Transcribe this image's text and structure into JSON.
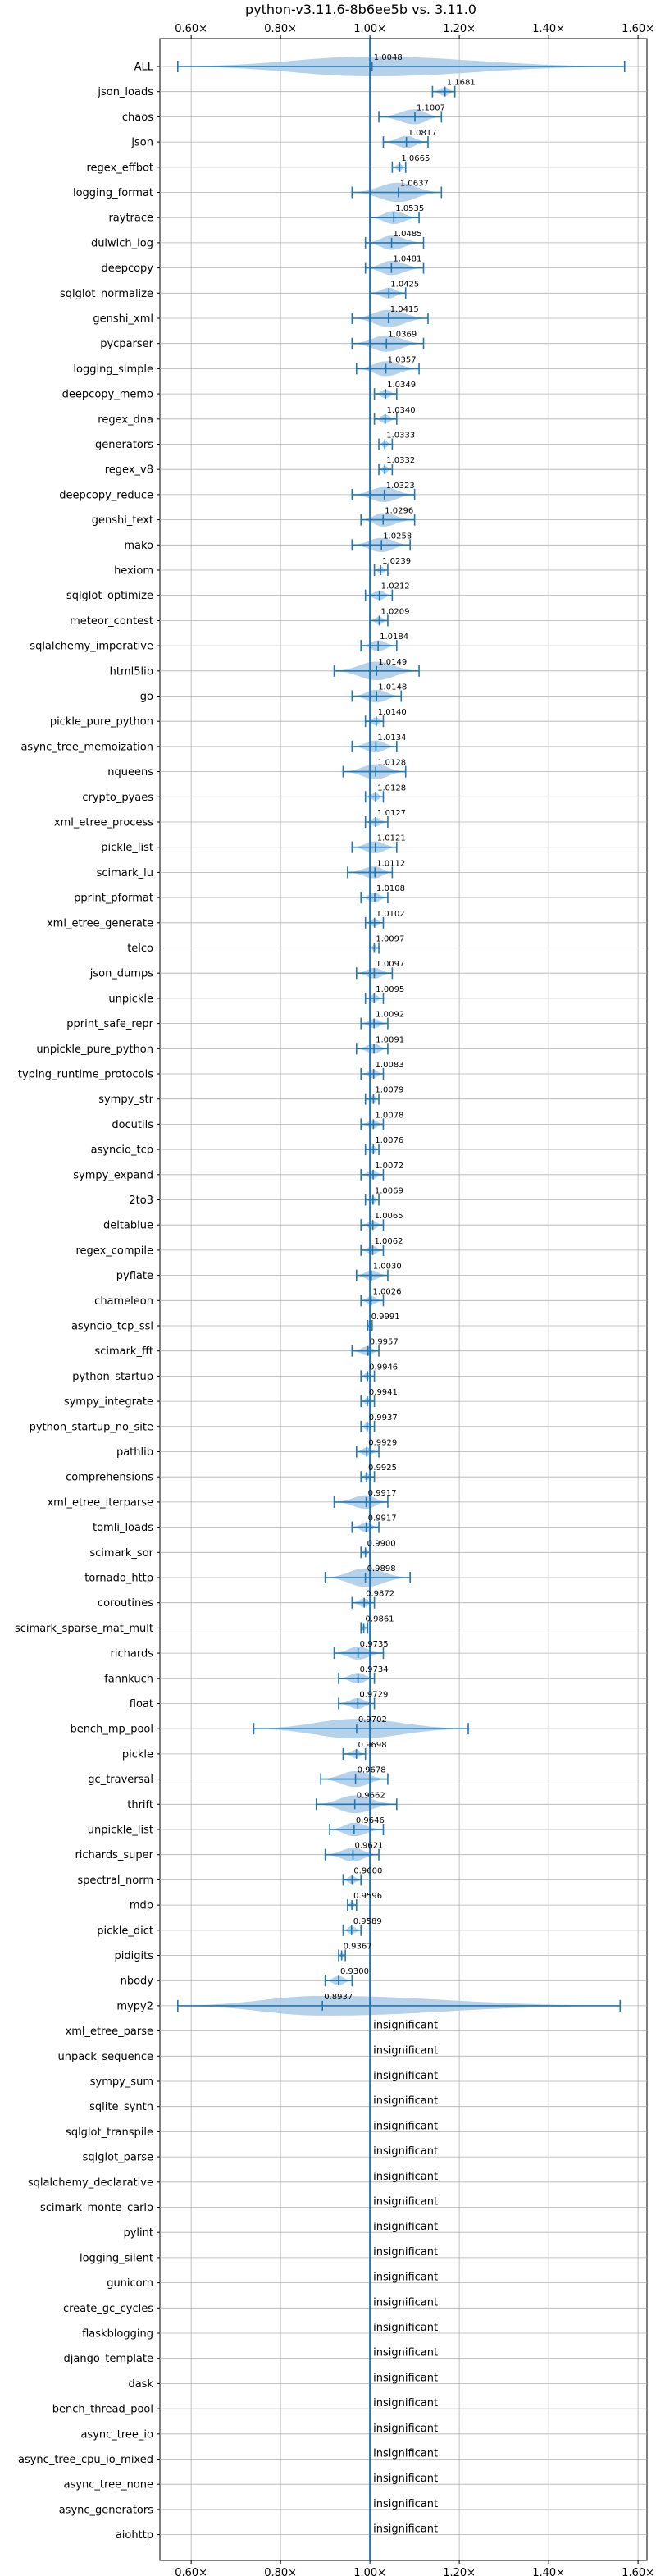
{
  "chart_data": {
    "type": "violin",
    "title": "python-v3.11.6-8b6ee5b vs. 3.11.0",
    "xlim": [
      0.53,
      1.62
    ],
    "xticks": [
      0.6,
      0.8,
      1.0,
      1.2,
      1.4,
      1.6
    ],
    "xtick_labels": [
      "0.60×",
      "0.80×",
      "1.00×",
      "1.20×",
      "1.40×",
      "1.60×"
    ],
    "reference_line": 1.0,
    "grid": true,
    "colors": {
      "violin": "#a9c9e6",
      "whisker": "#1f77b4",
      "reference": "#1f77b4",
      "grid": "#b0b0b0"
    },
    "insignificant_label": "insignificant",
    "benchmarks": [
      {
        "name": "ALL",
        "median": 1.0048,
        "label": "1.0048",
        "lo": 0.57,
        "hi": 1.57
      },
      {
        "name": "json_loads",
        "median": 1.1681,
        "label": "1.1681",
        "lo": 1.14,
        "hi": 1.19
      },
      {
        "name": "chaos",
        "median": 1.1007,
        "label": "1.1007",
        "lo": 1.02,
        "hi": 1.16
      },
      {
        "name": "json",
        "median": 1.0817,
        "label": "1.0817",
        "lo": 1.03,
        "hi": 1.13
      },
      {
        "name": "regex_effbot",
        "median": 1.0665,
        "label": "1.0665",
        "lo": 1.05,
        "hi": 1.08
      },
      {
        "name": "logging_format",
        "median": 1.0637,
        "label": "1.0637",
        "lo": 0.96,
        "hi": 1.16
      },
      {
        "name": "raytrace",
        "median": 1.0535,
        "label": "1.0535",
        "lo": 1.0,
        "hi": 1.11
      },
      {
        "name": "dulwich_log",
        "median": 1.0485,
        "label": "1.0485",
        "lo": 0.99,
        "hi": 1.12
      },
      {
        "name": "deepcopy",
        "median": 1.0481,
        "label": "1.0481",
        "lo": 0.99,
        "hi": 1.12
      },
      {
        "name": "sqlglot_normalize",
        "median": 1.0425,
        "label": "1.0425",
        "lo": 1.0,
        "hi": 1.08
      },
      {
        "name": "genshi_xml",
        "median": 1.0415,
        "label": "1.0415",
        "lo": 0.96,
        "hi": 1.13
      },
      {
        "name": "pycparser",
        "median": 1.0369,
        "label": "1.0369",
        "lo": 0.96,
        "hi": 1.12
      },
      {
        "name": "logging_simple",
        "median": 1.0357,
        "label": "1.0357",
        "lo": 0.97,
        "hi": 1.11
      },
      {
        "name": "deepcopy_memo",
        "median": 1.0349,
        "label": "1.0349",
        "lo": 1.01,
        "hi": 1.06
      },
      {
        "name": "regex_dna",
        "median": 1.034,
        "label": "1.0340",
        "lo": 1.01,
        "hi": 1.06
      },
      {
        "name": "generators",
        "median": 1.0333,
        "label": "1.0333",
        "lo": 1.02,
        "hi": 1.05
      },
      {
        "name": "regex_v8",
        "median": 1.0332,
        "label": "1.0332",
        "lo": 1.02,
        "hi": 1.05
      },
      {
        "name": "deepcopy_reduce",
        "median": 1.0323,
        "label": "1.0323",
        "lo": 0.96,
        "hi": 1.1
      },
      {
        "name": "genshi_text",
        "median": 1.0296,
        "label": "1.0296",
        "lo": 0.98,
        "hi": 1.1
      },
      {
        "name": "mako",
        "median": 1.0258,
        "label": "1.0258",
        "lo": 0.96,
        "hi": 1.09
      },
      {
        "name": "hexiom",
        "median": 1.0239,
        "label": "1.0239",
        "lo": 1.01,
        "hi": 1.04
      },
      {
        "name": "sqlglot_optimize",
        "median": 1.0212,
        "label": "1.0212",
        "lo": 0.99,
        "hi": 1.05
      },
      {
        "name": "meteor_contest",
        "median": 1.0209,
        "label": "1.0209",
        "lo": 1.0,
        "hi": 1.04
      },
      {
        "name": "sqlalchemy_imperative",
        "median": 1.0184,
        "label": "1.0184",
        "lo": 0.98,
        "hi": 1.06
      },
      {
        "name": "html5lib",
        "median": 1.0149,
        "label": "1.0149",
        "lo": 0.92,
        "hi": 1.11
      },
      {
        "name": "go",
        "median": 1.0148,
        "label": "1.0148",
        "lo": 0.96,
        "hi": 1.07
      },
      {
        "name": "pickle_pure_python",
        "median": 1.014,
        "label": "1.0140",
        "lo": 0.99,
        "hi": 1.03
      },
      {
        "name": "async_tree_memoization",
        "median": 1.0134,
        "label": "1.0134",
        "lo": 0.96,
        "hi": 1.06
      },
      {
        "name": "nqueens",
        "median": 1.0128,
        "label": "1.0128",
        "lo": 0.94,
        "hi": 1.08
      },
      {
        "name": "crypto_pyaes",
        "median": 1.0128,
        "label": "1.0128",
        "lo": 0.99,
        "hi": 1.03
      },
      {
        "name": "xml_etree_process",
        "median": 1.0127,
        "label": "1.0127",
        "lo": 0.99,
        "hi": 1.04
      },
      {
        "name": "pickle_list",
        "median": 1.0121,
        "label": "1.0121",
        "lo": 0.96,
        "hi": 1.06
      },
      {
        "name": "scimark_lu",
        "median": 1.0112,
        "label": "1.0112",
        "lo": 0.95,
        "hi": 1.05
      },
      {
        "name": "pprint_pformat",
        "median": 1.0108,
        "label": "1.0108",
        "lo": 0.98,
        "hi": 1.04
      },
      {
        "name": "xml_etree_generate",
        "median": 1.0102,
        "label": "1.0102",
        "lo": 0.99,
        "hi": 1.03
      },
      {
        "name": "telco",
        "median": 1.0097,
        "label": "1.0097",
        "lo": 1.0,
        "hi": 1.02
      },
      {
        "name": "json_dumps",
        "median": 1.0097,
        "label": "1.0097",
        "lo": 0.97,
        "hi": 1.05
      },
      {
        "name": "unpickle",
        "median": 1.0095,
        "label": "1.0095",
        "lo": 0.99,
        "hi": 1.03
      },
      {
        "name": "pprint_safe_repr",
        "median": 1.0092,
        "label": "1.0092",
        "lo": 0.98,
        "hi": 1.04
      },
      {
        "name": "unpickle_pure_python",
        "median": 1.0091,
        "label": "1.0091",
        "lo": 0.97,
        "hi": 1.04
      },
      {
        "name": "typing_runtime_protocols",
        "median": 1.0083,
        "label": "1.0083",
        "lo": 0.98,
        "hi": 1.03
      },
      {
        "name": "sympy_str",
        "median": 1.0079,
        "label": "1.0079",
        "lo": 0.99,
        "hi": 1.02
      },
      {
        "name": "docutils",
        "median": 1.0078,
        "label": "1.0078",
        "lo": 0.98,
        "hi": 1.03
      },
      {
        "name": "asyncio_tcp",
        "median": 1.0076,
        "label": "1.0076",
        "lo": 0.99,
        "hi": 1.02
      },
      {
        "name": "sympy_expand",
        "median": 1.0072,
        "label": "1.0072",
        "lo": 0.98,
        "hi": 1.03
      },
      {
        "name": "2to3",
        "median": 1.0069,
        "label": "1.0069",
        "lo": 0.99,
        "hi": 1.02
      },
      {
        "name": "deltablue",
        "median": 1.0065,
        "label": "1.0065",
        "lo": 0.98,
        "hi": 1.03
      },
      {
        "name": "regex_compile",
        "median": 1.0062,
        "label": "1.0062",
        "lo": 0.98,
        "hi": 1.03
      },
      {
        "name": "pyflate",
        "median": 1.003,
        "label": "1.0030",
        "lo": 0.97,
        "hi": 1.04
      },
      {
        "name": "chameleon",
        "median": 1.0026,
        "label": "1.0026",
        "lo": 0.98,
        "hi": 1.03
      },
      {
        "name": "asyncio_tcp_ssl",
        "median": 0.9991,
        "label": "0.9991",
        "lo": 0.995,
        "hi": 1.005
      },
      {
        "name": "scimark_fft",
        "median": 0.9957,
        "label": "0.9957",
        "lo": 0.96,
        "hi": 1.02
      },
      {
        "name": "python_startup",
        "median": 0.9946,
        "label": "0.9946",
        "lo": 0.98,
        "hi": 1.01
      },
      {
        "name": "sympy_integrate",
        "median": 0.9941,
        "label": "0.9941",
        "lo": 0.98,
        "hi": 1.01
      },
      {
        "name": "python_startup_no_site",
        "median": 0.9937,
        "label": "0.9937",
        "lo": 0.98,
        "hi": 1.01
      },
      {
        "name": "pathlib",
        "median": 0.9929,
        "label": "0.9929",
        "lo": 0.97,
        "hi": 1.02
      },
      {
        "name": "comprehensions",
        "median": 0.9925,
        "label": "0.9925",
        "lo": 0.98,
        "hi": 1.01
      },
      {
        "name": "xml_etree_iterparse",
        "median": 0.9917,
        "label": "0.9917",
        "lo": 0.92,
        "hi": 1.04
      },
      {
        "name": "tomli_loads",
        "median": 0.9917,
        "label": "0.9917",
        "lo": 0.96,
        "hi": 1.02
      },
      {
        "name": "scimark_sor",
        "median": 0.99,
        "label": "0.9900",
        "lo": 0.98,
        "hi": 1.0
      },
      {
        "name": "tornado_http",
        "median": 0.9898,
        "label": "0.9898",
        "lo": 0.9,
        "hi": 1.09
      },
      {
        "name": "coroutines",
        "median": 0.9872,
        "label": "0.9872",
        "lo": 0.96,
        "hi": 1.01
      },
      {
        "name": "scimark_sparse_mat_mult",
        "median": 0.9861,
        "label": "0.9861",
        "lo": 0.98,
        "hi": 0.995
      },
      {
        "name": "richards",
        "median": 0.9735,
        "label": "0.9735",
        "lo": 0.92,
        "hi": 1.03
      },
      {
        "name": "fannkuch",
        "median": 0.9734,
        "label": "0.9734",
        "lo": 0.93,
        "hi": 1.01
      },
      {
        "name": "float",
        "median": 0.9729,
        "label": "0.9729",
        "lo": 0.93,
        "hi": 1.01
      },
      {
        "name": "bench_mp_pool",
        "median": 0.9702,
        "label": "0.9702",
        "lo": 0.74,
        "hi": 1.22
      },
      {
        "name": "pickle",
        "median": 0.9698,
        "label": "0.9698",
        "lo": 0.94,
        "hi": 0.99
      },
      {
        "name": "gc_traversal",
        "median": 0.9678,
        "label": "0.9678",
        "lo": 0.89,
        "hi": 1.04
      },
      {
        "name": "thrift",
        "median": 0.9662,
        "label": "0.9662",
        "lo": 0.88,
        "hi": 1.06
      },
      {
        "name": "unpickle_list",
        "median": 0.9646,
        "label": "0.9646",
        "lo": 0.91,
        "hi": 1.03
      },
      {
        "name": "richards_super",
        "median": 0.9621,
        "label": "0.9621",
        "lo": 0.9,
        "hi": 1.02
      },
      {
        "name": "spectral_norm",
        "median": 0.96,
        "label": "0.9600",
        "lo": 0.94,
        "hi": 0.98
      },
      {
        "name": "mdp",
        "median": 0.9596,
        "label": "0.9596",
        "lo": 0.95,
        "hi": 0.97
      },
      {
        "name": "pickle_dict",
        "median": 0.9589,
        "label": "0.9589",
        "lo": 0.94,
        "hi": 0.98
      },
      {
        "name": "pidigits",
        "median": 0.9367,
        "label": "0.9367",
        "lo": 0.93,
        "hi": 0.945
      },
      {
        "name": "nbody",
        "median": 0.93,
        "label": "0.9300",
        "lo": 0.9,
        "hi": 0.96
      },
      {
        "name": "mypy2",
        "median": 0.8937,
        "label": "0.8937",
        "lo": 0.57,
        "hi": 1.56
      },
      {
        "name": "xml_etree_parse",
        "insignificant": true
      },
      {
        "name": "unpack_sequence",
        "insignificant": true
      },
      {
        "name": "sympy_sum",
        "insignificant": true
      },
      {
        "name": "sqlite_synth",
        "insignificant": true
      },
      {
        "name": "sqlglot_transpile",
        "insignificant": true
      },
      {
        "name": "sqlglot_parse",
        "insignificant": true
      },
      {
        "name": "sqlalchemy_declarative",
        "insignificant": true
      },
      {
        "name": "scimark_monte_carlo",
        "insignificant": true
      },
      {
        "name": "pylint",
        "insignificant": true
      },
      {
        "name": "logging_silent",
        "insignificant": true
      },
      {
        "name": "gunicorn",
        "insignificant": true
      },
      {
        "name": "create_gc_cycles",
        "insignificant": true
      },
      {
        "name": "flaskblogging",
        "insignificant": true
      },
      {
        "name": "django_template",
        "insignificant": true
      },
      {
        "name": "dask",
        "insignificant": true
      },
      {
        "name": "bench_thread_pool",
        "insignificant": true
      },
      {
        "name": "async_tree_io",
        "insignificant": true
      },
      {
        "name": "async_tree_cpu_io_mixed",
        "insignificant": true
      },
      {
        "name": "async_tree_none",
        "insignificant": true
      },
      {
        "name": "async_generators",
        "insignificant": true
      },
      {
        "name": "aiohttp",
        "insignificant": true
      }
    ]
  }
}
